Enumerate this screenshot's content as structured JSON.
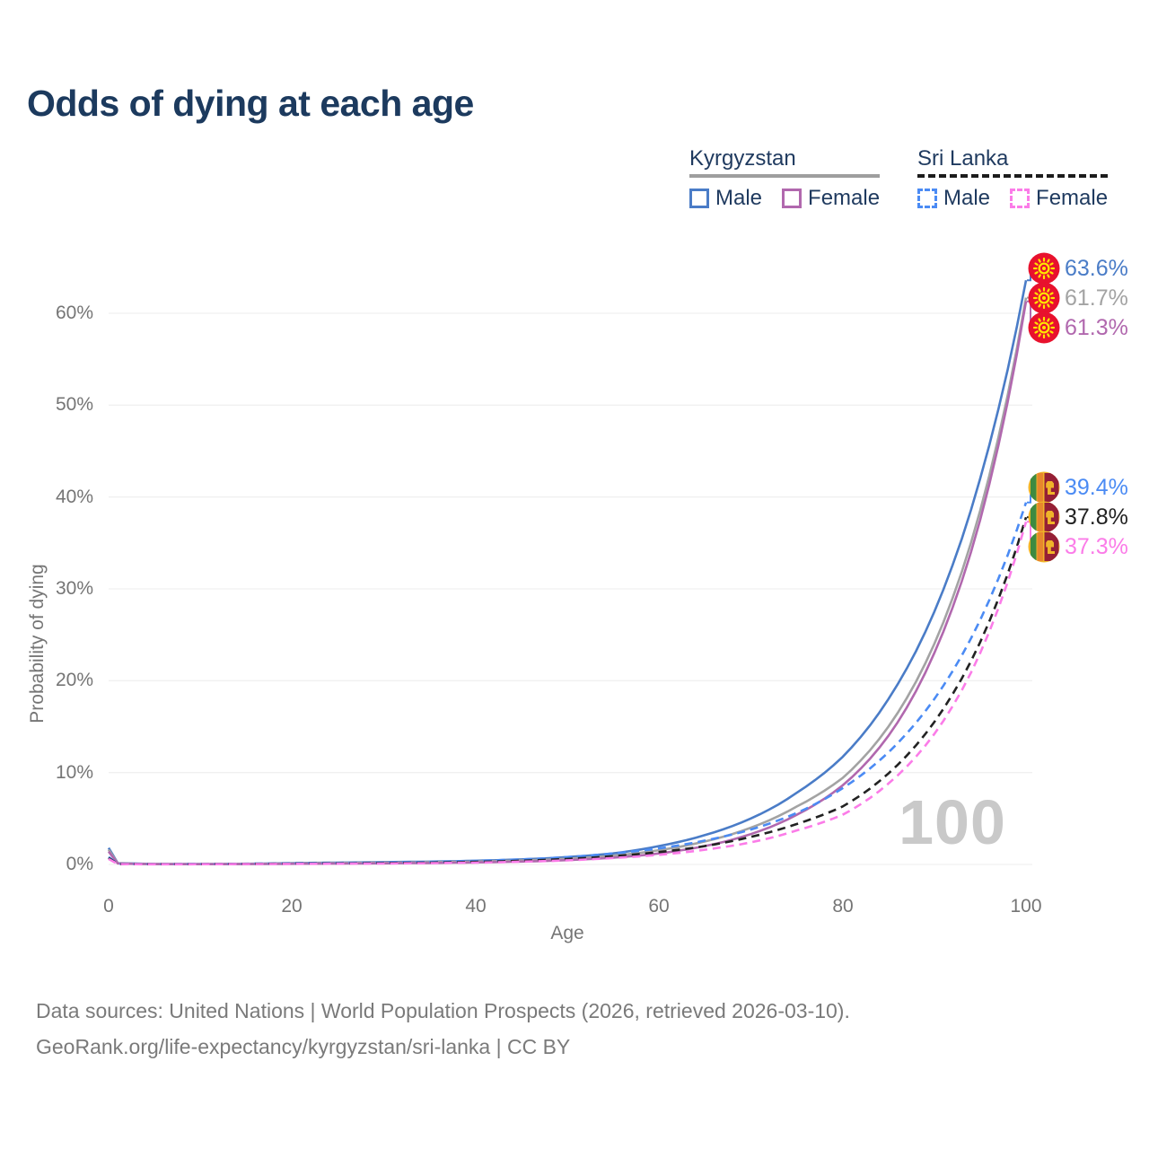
{
  "title": "Odds of dying at each age",
  "watermark": "100",
  "legend": {
    "groups": [
      {
        "label": "Kyrgyzstan",
        "line_style": "solid",
        "items": [
          {
            "label": "Male",
            "color": "#4a7cc7"
          },
          {
            "label": "Female",
            "color": "#b168ae"
          }
        ]
      },
      {
        "label": "Sri Lanka",
        "line_style": "dashed",
        "items": [
          {
            "label": "Male",
            "color": "#4b8bf4"
          },
          {
            "label": "Female",
            "color": "#fb7ce8"
          }
        ]
      }
    ]
  },
  "chart_data": {
    "type": "line",
    "title": "Odds of dying at each age",
    "xlabel": "Age",
    "ylabel": "Probability of dying",
    "xlim": [
      0,
      100
    ],
    "ylim_percent": [
      0,
      60
    ],
    "x_ticks": [
      0,
      20,
      40,
      60,
      80,
      100
    ],
    "y_ticks_percent": [
      0,
      10,
      20,
      30,
      40,
      50,
      60
    ],
    "grid": "horizontal",
    "legend_position": "top-right",
    "ages": [
      0,
      1,
      5,
      10,
      15,
      20,
      25,
      30,
      35,
      40,
      45,
      50,
      55,
      60,
      65,
      70,
      75,
      80,
      85,
      90,
      95,
      100
    ],
    "series": [
      {
        "key": "kyrgyzstan-male",
        "name": "Kyrgyzstan Male",
        "color": "#4a7cc7",
        "dashed": false,
        "flag": "kg",
        "end_label": "63.6%",
        "values_percent": [
          1.8,
          0.15,
          0.05,
          0.04,
          0.07,
          0.15,
          0.2,
          0.25,
          0.3,
          0.4,
          0.55,
          0.8,
          1.2,
          2.0,
          3.2,
          5.0,
          7.8,
          11.7,
          18.0,
          27.5,
          42.0,
          63.6
        ]
      },
      {
        "key": "kyrgyzstan-average",
        "name": "Kyrgyzstan Average",
        "color": "#a3a3a3",
        "dashed": false,
        "flag": "kg",
        "end_label": "61.7%",
        "values_percent": [
          1.6,
          0.13,
          0.04,
          0.03,
          0.05,
          0.11,
          0.15,
          0.19,
          0.24,
          0.31,
          0.43,
          0.62,
          0.95,
          1.55,
          2.5,
          4.0,
          6.3,
          9.4,
          15.0,
          24.0,
          38.5,
          61.7
        ]
      },
      {
        "key": "kyrgyzstan-female",
        "name": "Kyrgyzstan Female",
        "color": "#b168ae",
        "dashed": false,
        "flag": "kg",
        "end_label": "61.3%",
        "values_percent": [
          1.4,
          0.11,
          0.035,
          0.025,
          0.04,
          0.07,
          0.09,
          0.12,
          0.16,
          0.22,
          0.31,
          0.47,
          0.74,
          1.2,
          2.0,
          3.3,
          5.4,
          8.6,
          14.0,
          23.0,
          37.5,
          61.3
        ]
      },
      {
        "key": "sri-lanka-male",
        "name": "Sri Lanka Male",
        "color": "#4b8bf4",
        "dashed": true,
        "flag": "lk",
        "end_label": "39.4%",
        "values_percent": [
          0.8,
          0.06,
          0.03,
          0.04,
          0.08,
          0.12,
          0.15,
          0.2,
          0.27,
          0.38,
          0.55,
          0.8,
          1.2,
          1.75,
          2.6,
          3.8,
          5.6,
          8.3,
          12.2,
          18.0,
          26.6,
          39.4
        ]
      },
      {
        "key": "sri-lanka-average",
        "name": "Sri Lanka Average",
        "color": "#222222",
        "dashed": true,
        "flag": "lk",
        "end_label": "37.8%",
        "values_percent": [
          0.7,
          0.05,
          0.025,
          0.03,
          0.06,
          0.09,
          0.11,
          0.15,
          0.2,
          0.28,
          0.4,
          0.6,
          0.9,
          1.35,
          2.0,
          3.0,
          4.4,
          6.3,
          9.9,
          15.5,
          24.2,
          37.8
        ]
      },
      {
        "key": "sri-lanka-female",
        "name": "Sri Lanka Female",
        "color": "#fb7ce8",
        "dashed": true,
        "flag": "lk",
        "end_label": "37.3%",
        "values_percent": [
          0.6,
          0.04,
          0.02,
          0.025,
          0.04,
          0.06,
          0.08,
          0.1,
          0.14,
          0.2,
          0.3,
          0.45,
          0.7,
          1.05,
          1.6,
          2.4,
          3.7,
          5.4,
          8.8,
          14.2,
          23.0,
          37.3
        ]
      }
    ],
    "flag_colors": {
      "kg": {
        "red": "#e8112d",
        "yellow": "#ffe400"
      },
      "lk": {
        "gold": "#f0b429",
        "green": "#3d8a41",
        "orange": "#e8862d",
        "maroon": "#951f36"
      }
    }
  },
  "footer": {
    "line1": "Data sources: United Nations | World Population Prospects (2026, retrieved 2026-03-10).",
    "line2": "GeoRank.org/life-expectancy/kyrgyzstan/sri-lanka | CC BY"
  }
}
